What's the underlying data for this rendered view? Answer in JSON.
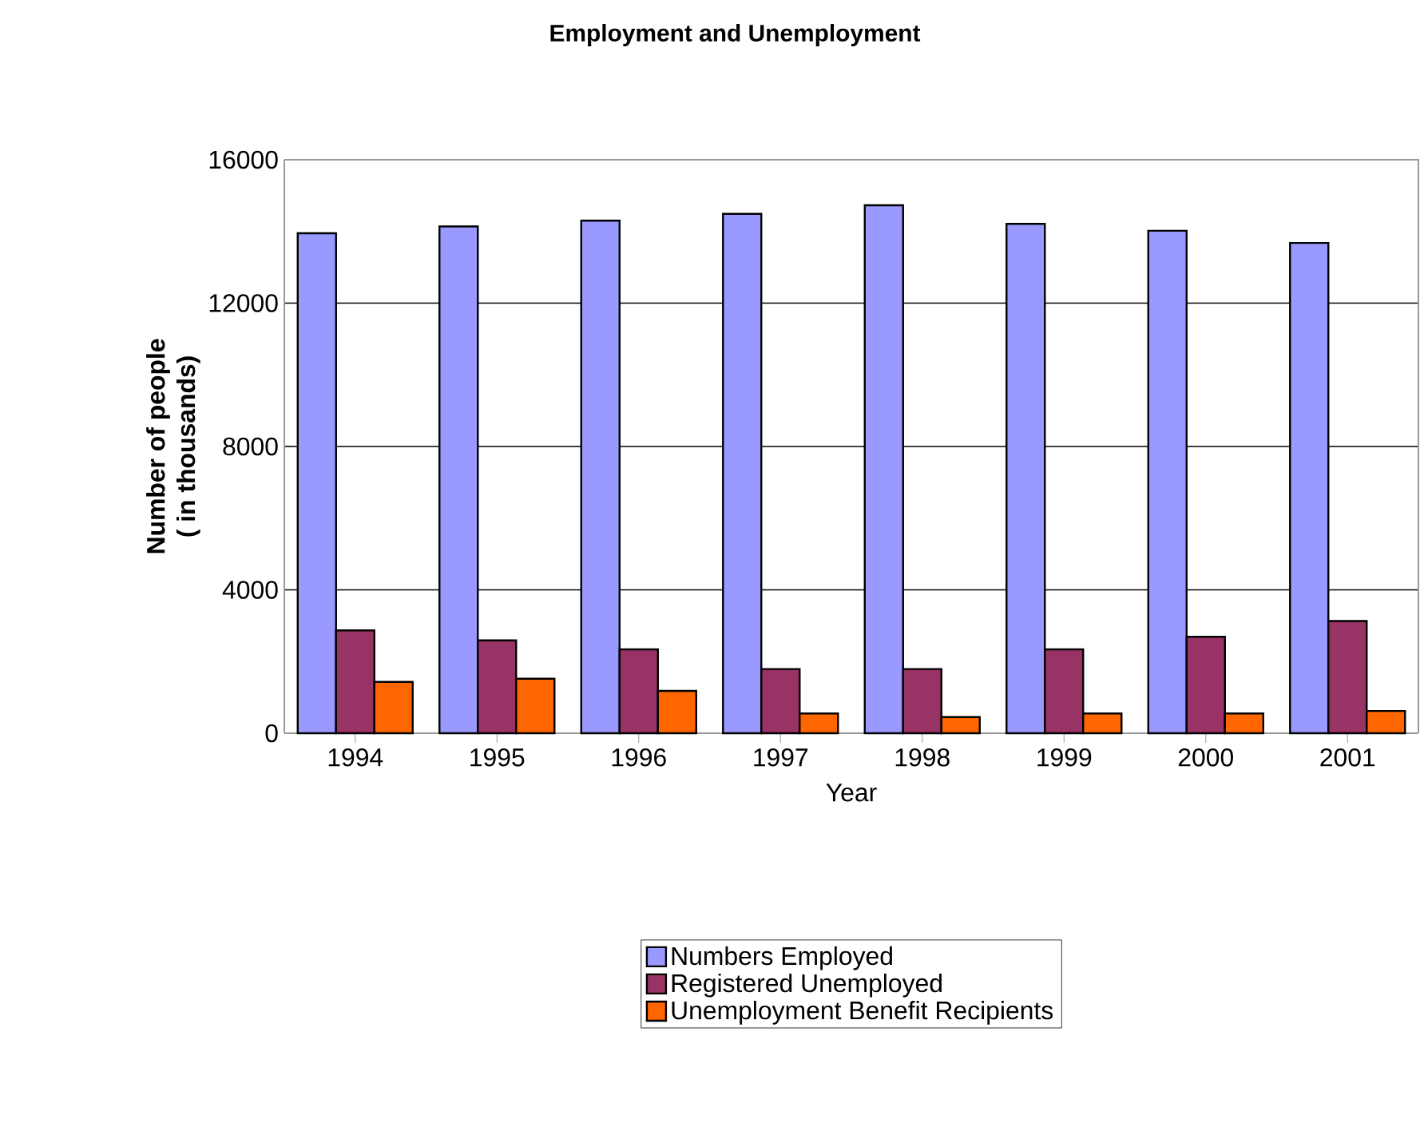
{
  "chart_data": {
    "type": "bar",
    "title": "Employment and Unemployment",
    "xlabel": "Year",
    "ylabel": "Number of people\n( in thousands)",
    "categories": [
      "1994",
      "1995",
      "1996",
      "1997",
      "1998",
      "1999",
      "2000",
      "2001"
    ],
    "series": [
      {
        "name": "Numbers Employed",
        "color": "#9999ff",
        "values": [
          13950,
          14140,
          14300,
          14490,
          14730,
          14210,
          14020,
          13680
        ]
      },
      {
        "name": "Registered Unemployed",
        "color": "#993366",
        "values": [
          2870,
          2590,
          2340,
          1790,
          1790,
          2340,
          2690,
          3130
        ]
      },
      {
        "name": "Unemployment Benefit Recipients",
        "color": "#ff6600",
        "values": [
          1430,
          1520,
          1180,
          550,
          450,
          550,
          550,
          620
        ]
      }
    ],
    "ylim": [
      0,
      16000
    ],
    "yticks": [
      0,
      4000,
      8000,
      12000,
      16000
    ],
    "grid": "y",
    "legend": "bottom"
  }
}
